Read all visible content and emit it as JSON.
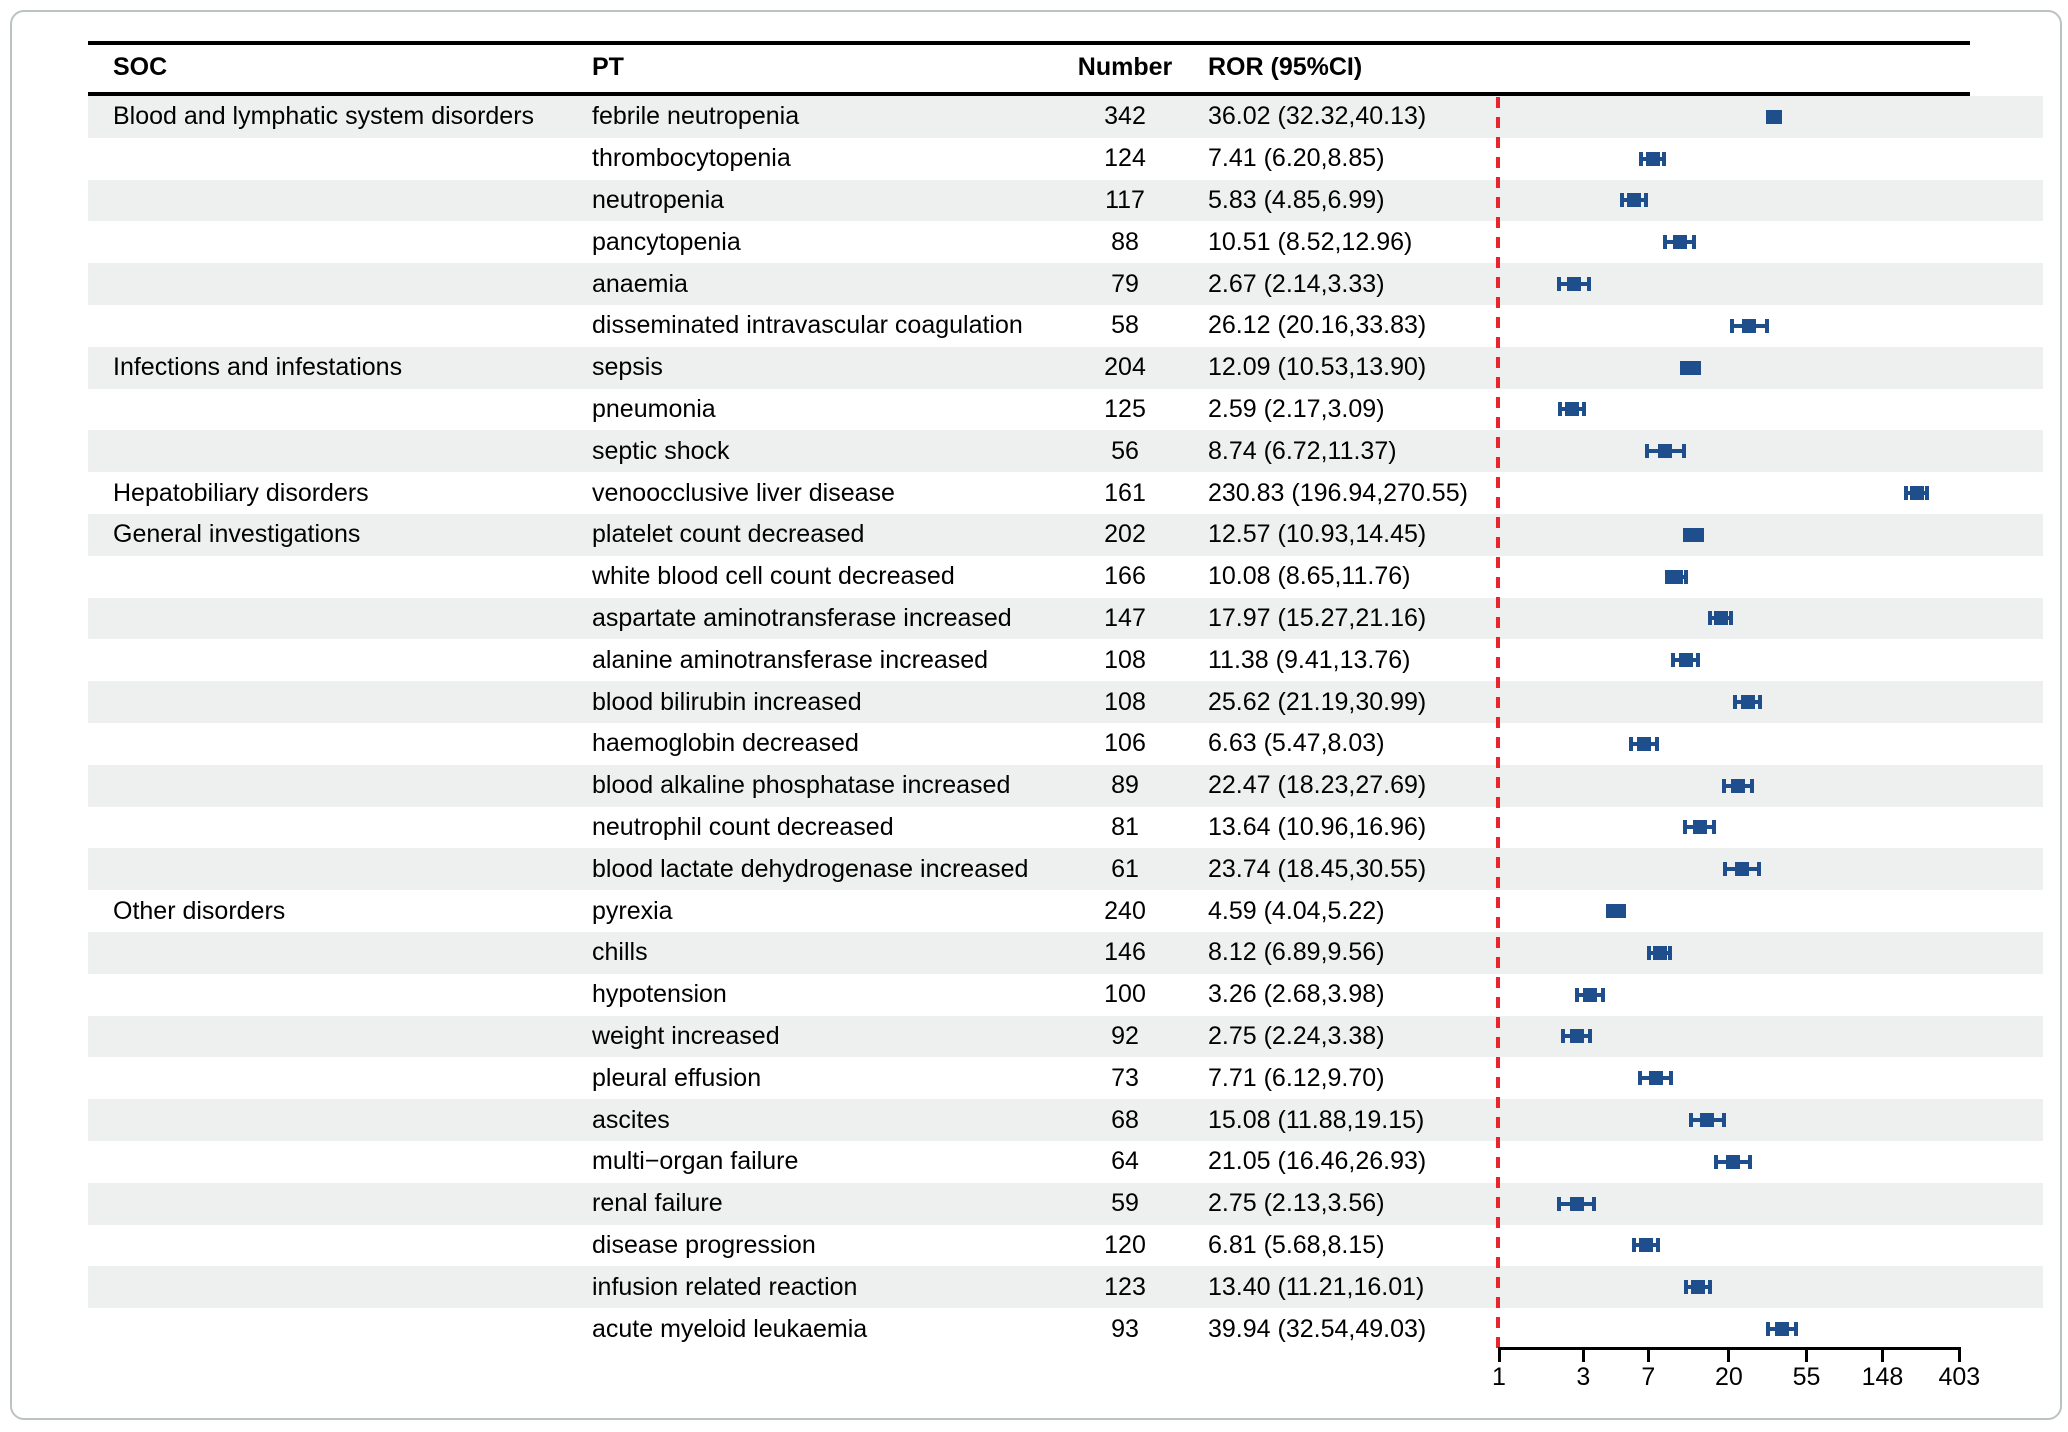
{
  "table": {
    "headers": {
      "soc": "SOC",
      "pt": "PT",
      "number": "Number",
      "ror": "ROR (95%CI)"
    }
  },
  "chart_data": {
    "type": "forest",
    "orientation": "horizontal",
    "x_scale": "log",
    "x_ticks": [
      1,
      3,
      7,
      20,
      55,
      148,
      403
    ],
    "x_range": [
      1,
      403
    ],
    "reference_line": 1,
    "legend": "none",
    "grid": false,
    "colors": {
      "marker": "#1e4e8c",
      "reference_line": "#e8252b",
      "row_band": "#eef0ef",
      "rule": "#000000"
    },
    "columns": [
      "SOC",
      "PT",
      "Number",
      "ROR (95%CI)"
    ],
    "rows": [
      {
        "soc": "Blood and lymphatic system disorders",
        "pt": "febrile neutropenia",
        "number": "342",
        "ror": "36.02 (32.32,40.13)",
        "est": 36.02,
        "lo": 32.32,
        "hi": 40.13
      },
      {
        "soc": "",
        "pt": "thrombocytopenia",
        "number": "124",
        "ror": "7.41 (6.20,8.85)",
        "est": 7.41,
        "lo": 6.2,
        "hi": 8.85
      },
      {
        "soc": "",
        "pt": "neutropenia",
        "number": "117",
        "ror": "5.83 (4.85,6.99)",
        "est": 5.83,
        "lo": 4.85,
        "hi": 6.99
      },
      {
        "soc": "",
        "pt": "pancytopenia",
        "number": "88",
        "ror": "10.51 (8.52,12.96)",
        "est": 10.51,
        "lo": 8.52,
        "hi": 12.96
      },
      {
        "soc": "",
        "pt": "anaemia",
        "number": "79",
        "ror": "2.67 (2.14,3.33)",
        "est": 2.67,
        "lo": 2.14,
        "hi": 3.33
      },
      {
        "soc": "",
        "pt": "disseminated intravascular coagulation",
        "number": "58",
        "ror": "26.12 (20.16,33.83)",
        "est": 26.12,
        "lo": 20.16,
        "hi": 33.83
      },
      {
        "soc": "Infections and infestations",
        "pt": "sepsis",
        "number": "204",
        "ror": "12.09 (10.53,13.90)",
        "est": 12.09,
        "lo": 10.53,
        "hi": 13.9
      },
      {
        "soc": "",
        "pt": "pneumonia",
        "number": "125",
        "ror": "2.59 (2.17,3.09)",
        "est": 2.59,
        "lo": 2.17,
        "hi": 3.09
      },
      {
        "soc": "",
        "pt": "septic shock",
        "number": "56",
        "ror": "8.74 (6.72,11.37)",
        "est": 8.74,
        "lo": 6.72,
        "hi": 11.37
      },
      {
        "soc": "Hepatobiliary disorders",
        "pt": "venoocclusive liver disease",
        "number": "161",
        "ror": "230.83 (196.94,270.55)",
        "est": 230.83,
        "lo": 196.94,
        "hi": 270.55
      },
      {
        "soc": "General investigations",
        "pt": "platelet count decreased",
        "number": "202",
        "ror": "12.57 (10.93,14.45)",
        "est": 12.57,
        "lo": 10.93,
        "hi": 14.45
      },
      {
        "soc": "",
        "pt": "white blood cell count decreased",
        "number": "166",
        "ror": "10.08 (8.65,11.76)",
        "est": 10.08,
        "lo": 8.65,
        "hi": 11.76
      },
      {
        "soc": "",
        "pt": "aspartate aminotransferase increased",
        "number": "147",
        "ror": "17.97 (15.27,21.16)",
        "est": 17.97,
        "lo": 15.27,
        "hi": 21.16
      },
      {
        "soc": "",
        "pt": "alanine aminotransferase increased",
        "number": "108",
        "ror": "11.38 (9.41,13.76)",
        "est": 11.38,
        "lo": 9.41,
        "hi": 13.76
      },
      {
        "soc": "",
        "pt": "blood bilirubin increased",
        "number": "108",
        "ror": "25.62 (21.19,30.99)",
        "est": 25.62,
        "lo": 21.19,
        "hi": 30.99
      },
      {
        "soc": "",
        "pt": "haemoglobin decreased",
        "number": "106",
        "ror": "6.63 (5.47,8.03)",
        "est": 6.63,
        "lo": 5.47,
        "hi": 8.03
      },
      {
        "soc": "",
        "pt": "blood alkaline phosphatase increased",
        "number": "89",
        "ror": "22.47 (18.23,27.69)",
        "est": 22.47,
        "lo": 18.23,
        "hi": 27.69
      },
      {
        "soc": "",
        "pt": "neutrophil count decreased",
        "number": "81",
        "ror": "13.64 (10.96,16.96)",
        "est": 13.64,
        "lo": 10.96,
        "hi": 16.96
      },
      {
        "soc": "",
        "pt": "blood lactate dehydrogenase increased",
        "number": "61",
        "ror": "23.74 (18.45,30.55)",
        "est": 23.74,
        "lo": 18.45,
        "hi": 30.55
      },
      {
        "soc": "Other disorders",
        "pt": "pyrexia",
        "number": "240",
        "ror": "4.59 (4.04,5.22)",
        "est": 4.59,
        "lo": 4.04,
        "hi": 5.22
      },
      {
        "soc": "",
        "pt": "chills",
        "number": "146",
        "ror": "8.12 (6.89,9.56)",
        "est": 8.12,
        "lo": 6.89,
        "hi": 9.56
      },
      {
        "soc": "",
        "pt": "hypotension",
        "number": "100",
        "ror": "3.26 (2.68,3.98)",
        "est": 3.26,
        "lo": 2.68,
        "hi": 3.98
      },
      {
        "soc": "",
        "pt": "weight increased",
        "number": "92",
        "ror": "2.75 (2.24,3.38)",
        "est": 2.75,
        "lo": 2.24,
        "hi": 3.38
      },
      {
        "soc": "",
        "pt": "pleural effusion",
        "number": "73",
        "ror": "7.71 (6.12,9.70)",
        "est": 7.71,
        "lo": 6.12,
        "hi": 9.7
      },
      {
        "soc": "",
        "pt": "ascites",
        "number": "68",
        "ror": "15.08 (11.88,19.15)",
        "est": 15.08,
        "lo": 11.88,
        "hi": 19.15
      },
      {
        "soc": "",
        "pt": "multi−organ failure",
        "number": "64",
        "ror": "21.05 (16.46,26.93)",
        "est": 21.05,
        "lo": 16.46,
        "hi": 26.93
      },
      {
        "soc": "",
        "pt": "renal failure",
        "number": "59",
        "ror": "2.75 (2.13,3.56)",
        "est": 2.75,
        "lo": 2.13,
        "hi": 3.56
      },
      {
        "soc": "",
        "pt": "disease progression",
        "number": "120",
        "ror": "6.81 (5.68,8.15)",
        "est": 6.81,
        "lo": 5.68,
        "hi": 8.15
      },
      {
        "soc": "",
        "pt": "infusion related reaction",
        "number": "123",
        "ror": "13.40 (11.21,16.01)",
        "est": 13.4,
        "lo": 11.21,
        "hi": 16.01
      },
      {
        "soc": "",
        "pt": "acute myeloid leukaemia",
        "number": "93",
        "ror": "39.94 (32.54,49.03)",
        "est": 39.94,
        "lo": 32.54,
        "hi": 49.03
      }
    ]
  }
}
